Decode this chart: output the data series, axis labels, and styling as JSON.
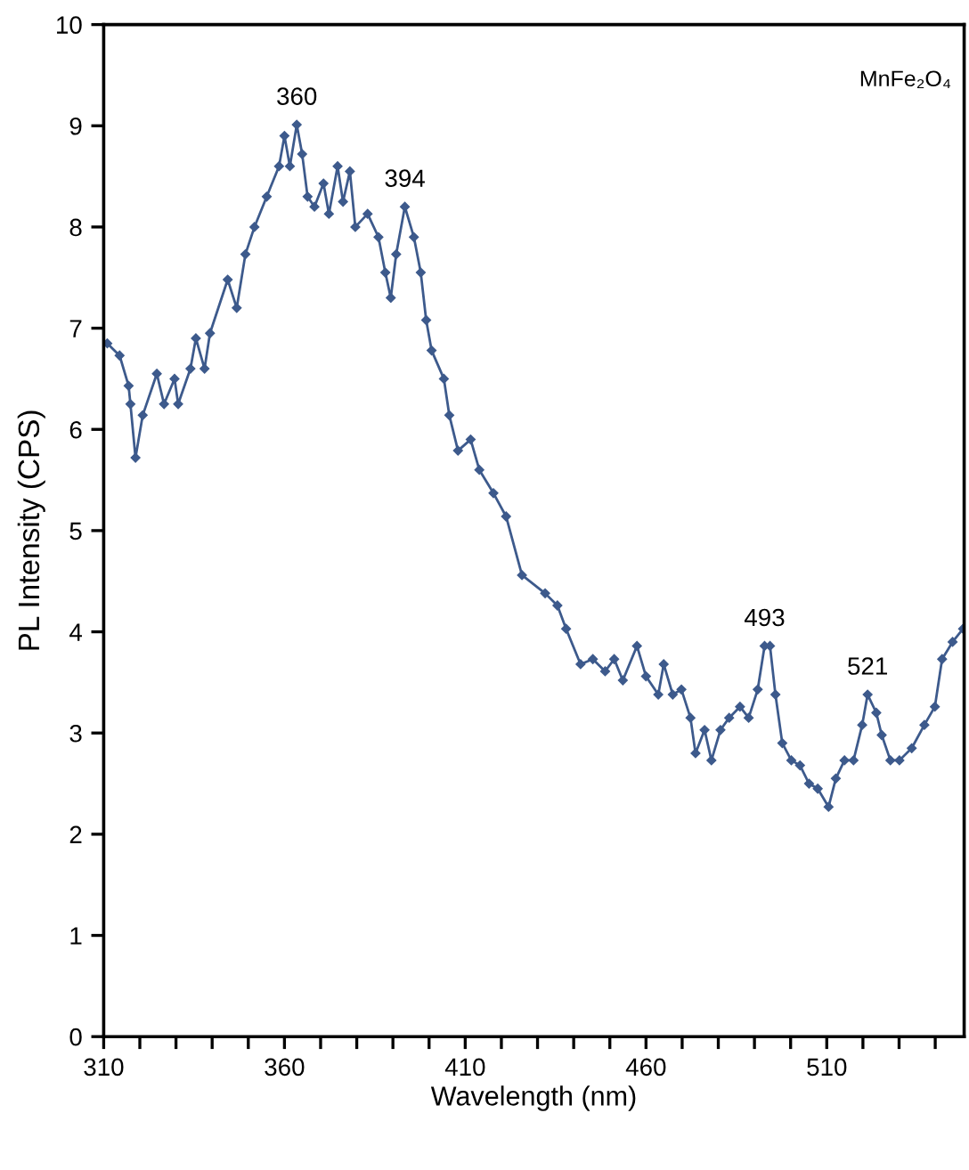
{
  "chart_data": {
    "type": "line",
    "xlabel": "Wavelength (nm)",
    "ylabel": "PL Intensity (CPS)",
    "series": [
      {
        "color": "#3d5a8c",
        "x": [
          311,
          314.4,
          316.9,
          317.4,
          318.8,
          320.8,
          324.7,
          326.7,
          329.6,
          330.6,
          334,
          335.5,
          337.9,
          339.4,
          344.3,
          346.8,
          349.2,
          351.7,
          355.1,
          358.5,
          360,
          361.5,
          363.4,
          364.9,
          366.4,
          368.3,
          370.8,
          372.3,
          374.7,
          376.2,
          378.1,
          379.6,
          383,
          386,
          387.9,
          389.4,
          390.9,
          393.3,
          395.8,
          397.7,
          399.2,
          400.7,
          404.1,
          405.6,
          408,
          411.5,
          413.9,
          417.8,
          421.3,
          425.7,
          432.1,
          435.5,
          437.9,
          441.9,
          445.3,
          448.7,
          451.2,
          453.6,
          457.5,
          460,
          463.4,
          464.9,
          467.4,
          469.8,
          472.3,
          473.7,
          476.2,
          478.1,
          480.6,
          483,
          486,
          488.4,
          490.9,
          492.8,
          494.3,
          495.8,
          497.7,
          500.2,
          502.6,
          505.1,
          507.5,
          510.5,
          512.5,
          514.9,
          517.4,
          519.8,
          521.3,
          523.7,
          525.2,
          527.6,
          530.1,
          533.5,
          537,
          539.9,
          541.9,
          544.8,
          547.7
        ],
        "values": [
          6.85,
          6.73,
          6.43,
          6.25,
          5.72,
          6.14,
          6.55,
          6.25,
          6.5,
          6.25,
          6.6,
          6.9,
          6.6,
          6.95,
          7.48,
          7.2,
          7.73,
          8.0,
          8.3,
          8.6,
          8.9,
          8.6,
          9.01,
          8.72,
          8.3,
          8.2,
          8.43,
          8.13,
          8.6,
          8.25,
          8.55,
          8.0,
          8.13,
          7.9,
          7.55,
          7.3,
          7.73,
          8.2,
          7.9,
          7.55,
          7.08,
          6.78,
          6.5,
          6.14,
          5.79,
          5.9,
          5.6,
          5.37,
          5.14,
          4.56,
          4.38,
          4.26,
          4.03,
          3.68,
          3.73,
          3.61,
          3.73,
          3.52,
          3.86,
          3.56,
          3.38,
          3.68,
          3.38,
          3.43,
          3.15,
          2.8,
          3.03,
          2.73,
          3.03,
          3.15,
          3.26,
          3.15,
          3.43,
          3.86,
          3.86,
          3.38,
          2.9,
          2.73,
          2.68,
          2.5,
          2.45,
          2.27,
          2.55,
          2.73,
          2.73,
          3.08,
          3.38,
          3.2,
          2.98,
          2.73,
          2.73,
          2.85,
          3.08,
          3.26,
          3.73,
          3.9,
          4.03
        ]
      }
    ],
    "xlim": [
      310,
      548
    ],
    "xticks": [
      310,
      {
        "value": 320,
        "label": null
      },
      {
        "value": 330,
        "label": null
      },
      {
        "value": 340,
        "label": null
      },
      {
        "value": 350,
        "label": null
      },
      360,
      {
        "value": 370,
        "label": null
      },
      {
        "value": 380,
        "label": null
      },
      {
        "value": 390,
        "label": null
      },
      {
        "value": 400,
        "label": null
      },
      410,
      {
        "value": 420,
        "label": null
      },
      {
        "value": 430,
        "label": null
      },
      {
        "value": 440,
        "label": null
      },
      {
        "value": 450,
        "label": null
      },
      460,
      {
        "value": 470,
        "label": null
      },
      {
        "value": 480,
        "label": null
      },
      {
        "value": 490,
        "label": null
      },
      {
        "value": 500,
        "label": null
      },
      510,
      {
        "value": 520,
        "label": null
      },
      {
        "value": 530,
        "label": null
      },
      {
        "value": 540,
        "label": null
      }
    ],
    "ylim": [
      0,
      10
    ],
    "yticks": [
      0,
      1,
      2,
      3,
      4,
      5,
      6,
      7,
      8,
      9,
      10
    ],
    "marker": "diamond",
    "line_style": "solid",
    "annotations": [
      {
        "text": "360",
        "x": 363.4,
        "y": 9.01
      },
      {
        "text": "394",
        "x": 393.3,
        "y": 8.2
      },
      {
        "text": "493",
        "x": 492.8,
        "y": 3.86
      },
      {
        "text": "521",
        "x": 521.3,
        "y": 3.38
      },
      "MnFe₂O₄"
    ]
  }
}
